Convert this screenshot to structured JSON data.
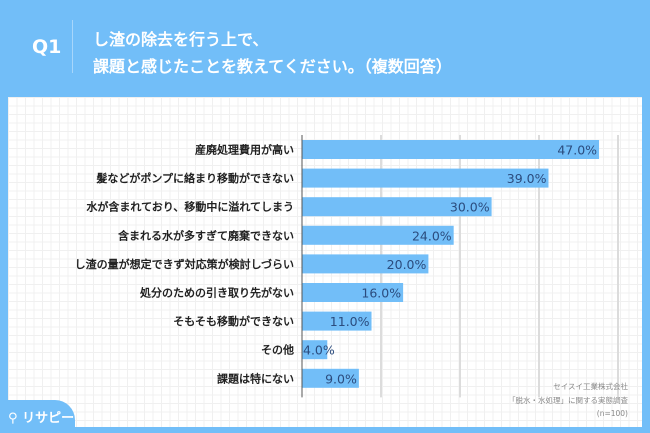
{
  "header": {
    "q_label": "Q1",
    "title_line1": "し渣の除去を行う上で、",
    "title_line2": "課題と感じたことを教えてください。（複数回答）"
  },
  "chart_data": {
    "type": "bar",
    "orientation": "horizontal",
    "categories": [
      "産廃処理費用が高い",
      "髪などがポンプに絡まり移動ができない",
      "水が含まれており、移動中に溢れてしまう",
      "含まれる水が多すぎて廃棄できない",
      "し渣の量が想定できず対応策が検討しづらい",
      "処分のための引き取り先がない",
      "そもそも移動ができない",
      "その他",
      "課題は特にない"
    ],
    "values": [
      47.0,
      39.0,
      30.0,
      24.0,
      20.0,
      16.0,
      11.0,
      4.0,
      9.0
    ],
    "data_labels": [
      "47.0%",
      "39.0%",
      "30.0%",
      "24.0%",
      "20.0%",
      "16.0%",
      "11.0%",
      "4.0%",
      "9.0%"
    ],
    "xlim": [
      0,
      50
    ],
    "grid": true,
    "bar_color": "#72bef8",
    "label_color": "#2b4c7e"
  },
  "source": {
    "line1": "セイスイ工業株式会社",
    "line2": "「脱水・水処理」に関する実態調査",
    "line3": "(n=100)"
  },
  "logo": {
    "text": "リサピー"
  }
}
